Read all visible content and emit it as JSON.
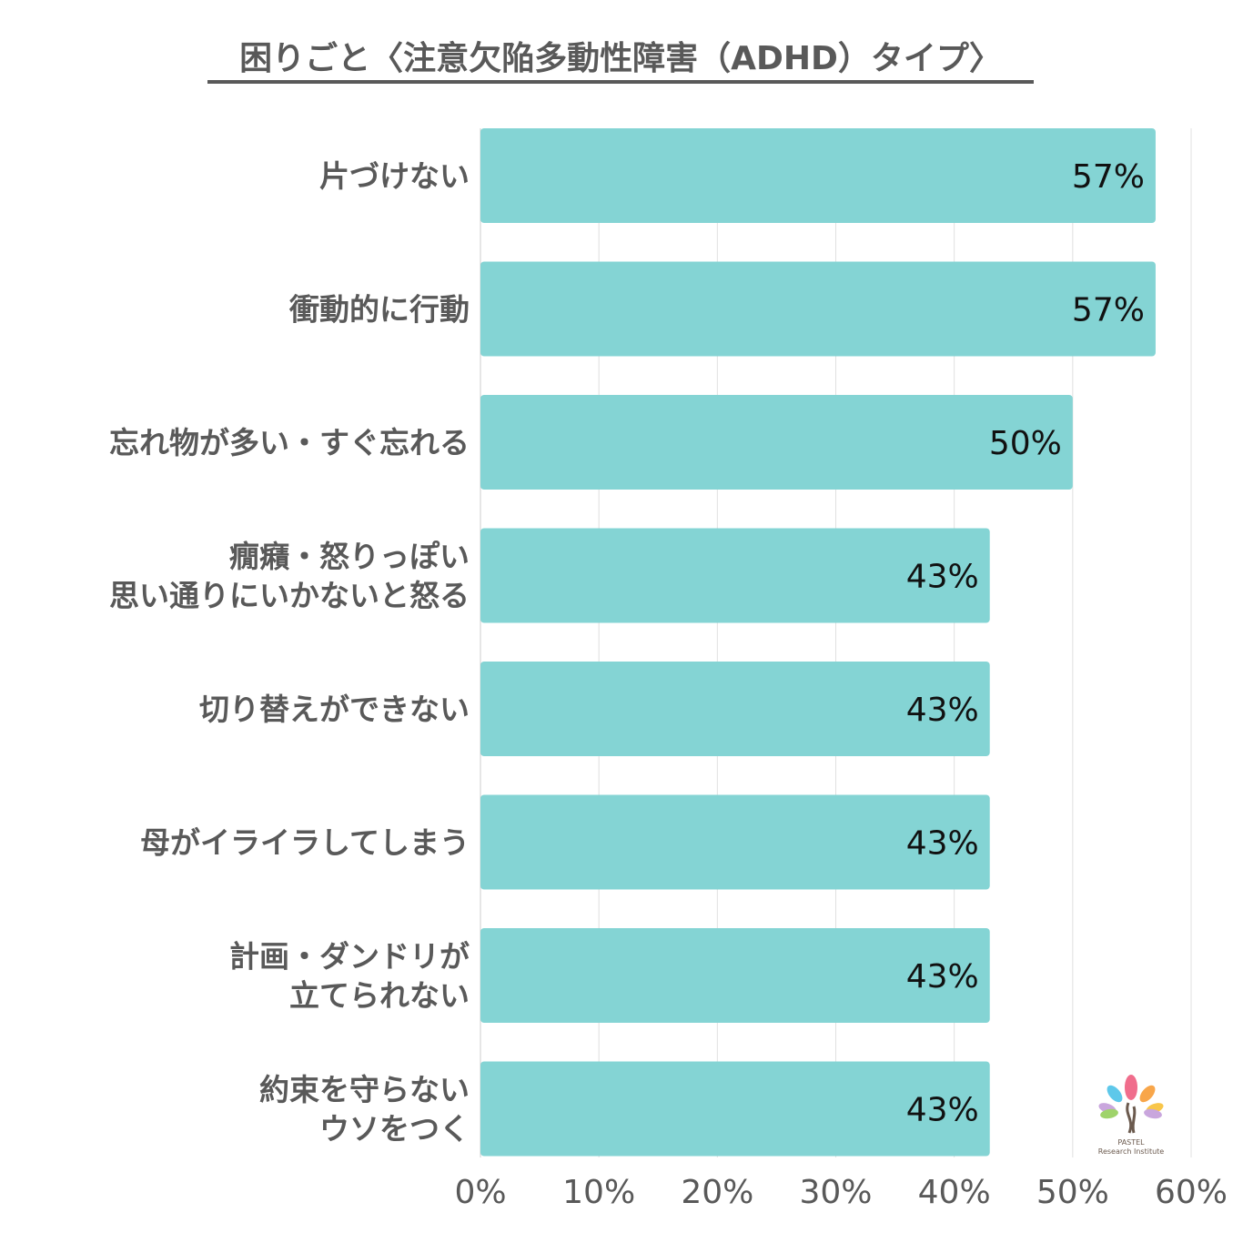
{
  "chart_data": {
    "type": "bar",
    "orientation": "horizontal",
    "title": "困りごと〈注意欠陥多動性障害（ADHD）タイプ〉",
    "categories": [
      [
        "片づけない"
      ],
      [
        "衝動的に行動"
      ],
      [
        "忘れ物が多い・すぐ忘れる"
      ],
      [
        "癇癪・怒りっぽい",
        "思い通りにいかないと怒る"
      ],
      [
        "切り替えができない"
      ],
      [
        "母がイライラしてしまう"
      ],
      [
        "計画・ダンドリが",
        "立てられない"
      ],
      [
        "約束を守らない",
        "ウソをつく"
      ]
    ],
    "values": [
      57,
      57,
      50,
      43,
      43,
      43,
      43,
      43
    ],
    "value_labels": [
      "57%",
      "57%",
      "50%",
      "43%",
      "43%",
      "43%",
      "43%",
      "43%"
    ],
    "xlim": [
      0,
      60
    ],
    "x_ticks": [
      0,
      10,
      20,
      30,
      40,
      50,
      60
    ],
    "x_tick_labels": [
      "0%",
      "10%",
      "20%",
      "30%",
      "40%",
      "50%",
      "60%"
    ],
    "grid": "vertical",
    "bar_color": "#84d4d4",
    "xlabel": "",
    "ylabel": ""
  },
  "logo": {
    "line1": "PASTEL",
    "line2": "Research Institute"
  }
}
